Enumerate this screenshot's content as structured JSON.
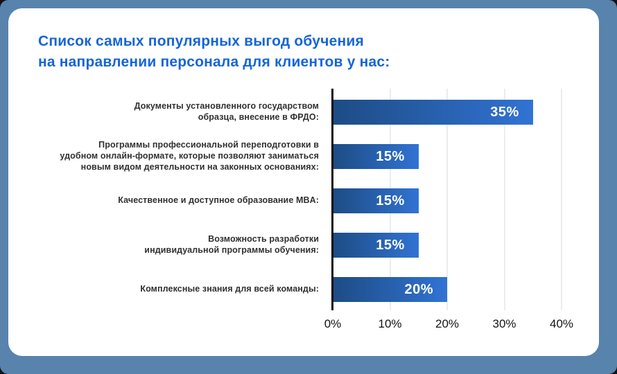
{
  "frame": {
    "background_color": "#5883ad",
    "card_background_color": "#ffffff"
  },
  "title": {
    "line1": "Список самых популярных выгод обучения",
    "line2": "на направлении персонала для клиентов у нас:",
    "color": "#1565d8"
  },
  "chart_data": {
    "type": "bar",
    "orientation": "horizontal",
    "title": "Список самых популярных выгод обучения на направлении персонала для клиентов у нас:",
    "categories": [
      "Документы установленного государством\nобразца, внесение в ФРДО:",
      "Программы профессиональной переподготовки в\nудобном онлайн-формате, которые позволяют заниматься\nновым видом деятельности на законных основаниях:",
      "Качественное и доступное образование MBA:",
      "Возможность разработки\nиндивидуальной программы обучения:",
      "Комплексные знания для всей команды:"
    ],
    "values": [
      35,
      15,
      15,
      15,
      20
    ],
    "value_labels": [
      "35%",
      "15%",
      "15%",
      "15%",
      "20%"
    ],
    "x_ticks": [
      "0%",
      "10%",
      "20%",
      "30%",
      "40%"
    ],
    "x_tick_values": [
      0,
      10,
      20,
      30,
      40
    ],
    "xlim": [
      0,
      40
    ],
    "grid": true,
    "legend": false,
    "bar_color_start": "#1d4c84",
    "bar_color_end": "#3173d4",
    "value_label_color": "#ffffff",
    "axis_color": "#0d0d0d",
    "gridline_color": "#ececec"
  }
}
